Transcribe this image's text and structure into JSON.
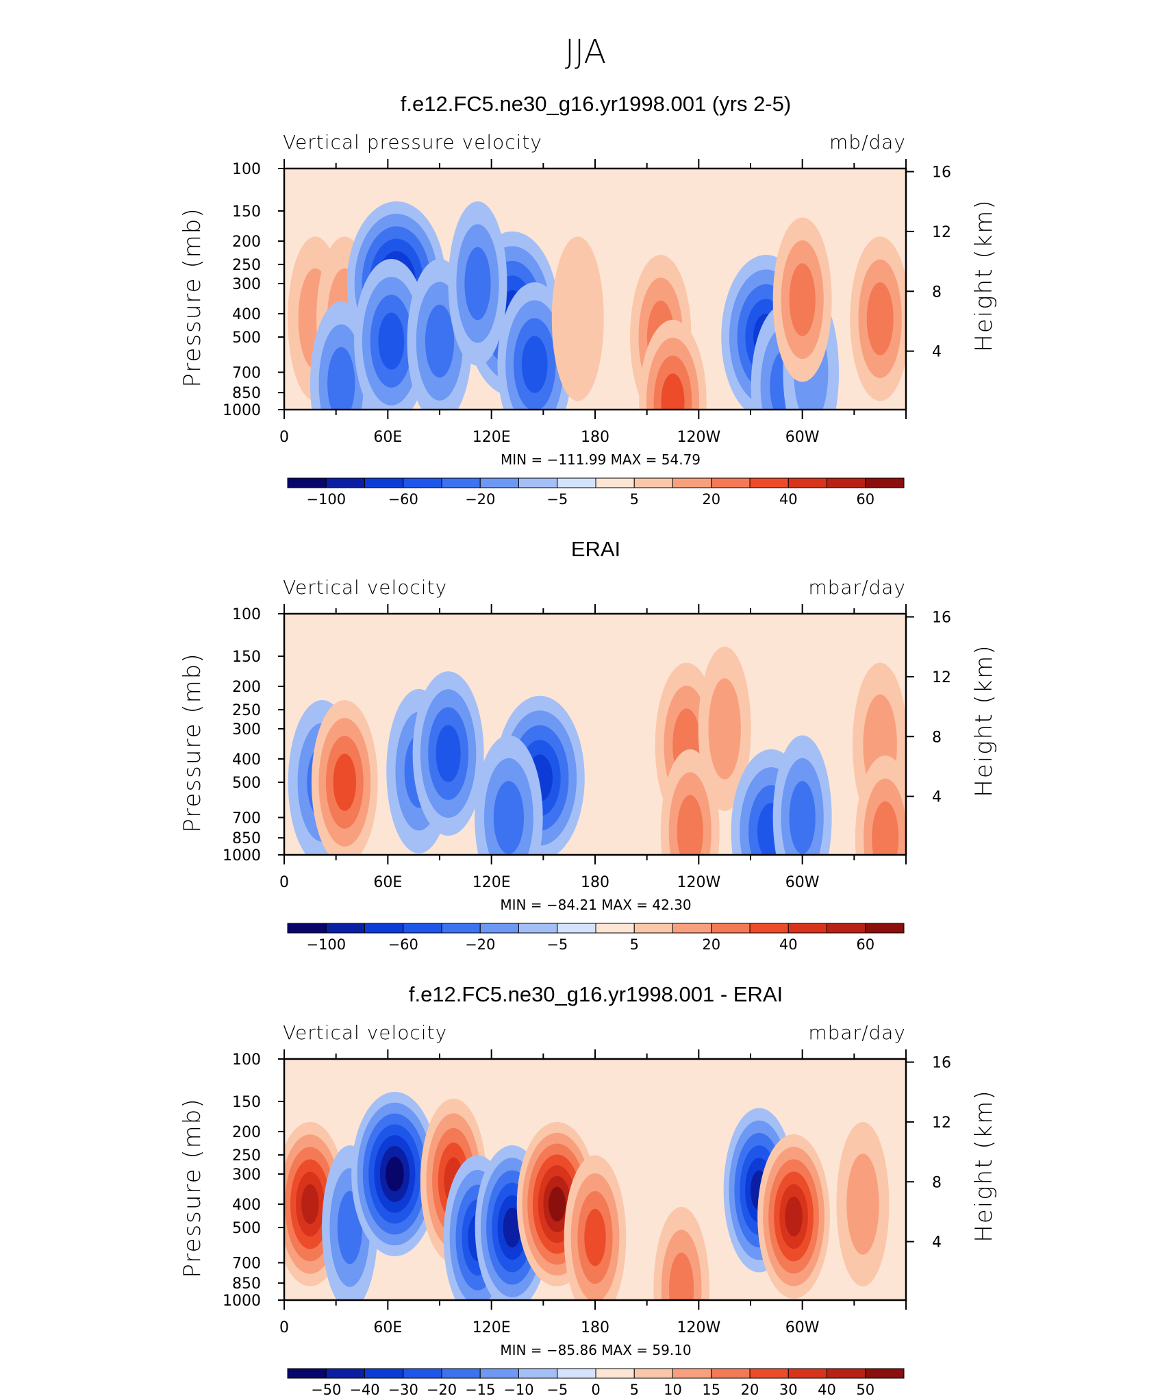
{
  "super_title": "JJA",
  "panels": [
    {
      "title": "f.e12.FC5.ne30_g16.yr1998.001 (yrs 2-5)",
      "left_label": "Vertical pressure velocity",
      "right_label": "mb/day",
      "min_max": "MIN = −111.99   MAX =  54.79"
    },
    {
      "title": "ERAI",
      "left_label": "Vertical velocity",
      "right_label": "mbar/day",
      "min_max": "MIN = −84.21   MAX =  42.30"
    },
    {
      "title": "f.e12.FC5.ne30_g16.yr1998.001 - ERAI",
      "left_label": "Vertical velocity",
      "right_label": "mbar/day",
      "min_max": "MIN = −85.86   MAX =  59.10"
    }
  ],
  "axes": {
    "y_label": "Pressure (mb)",
    "y2_label": "Height (km)",
    "pressure_ticks": [
      "100",
      "150",
      "200",
      "250",
      "300",
      "400",
      "500",
      "700",
      "850",
      "1000"
    ],
    "height_ticks": [
      "16",
      "12",
      "8",
      "4"
    ],
    "x_ticks": [
      "0",
      "60E",
      "120E",
      "180",
      "120W",
      "60W"
    ]
  },
  "colorbars": [
    {
      "labels": [
        "−100",
        "−60",
        "−20",
        "−5",
        "5",
        "20",
        "40",
        "60"
      ],
      "colors": [
        "#08066b",
        "#0a1fa4",
        "#0d3bd6",
        "#1f56ea",
        "#3d73f0",
        "#6d98f3",
        "#a4bff6",
        "#d4e3fb",
        "#fde5d6",
        "#fbc7ab",
        "#f8a07e",
        "#f37a55",
        "#ec4c2a",
        "#d8331b",
        "#b82114",
        "#8a0f0d"
      ]
    },
    {
      "labels": [
        "−100",
        "−60",
        "−20",
        "−5",
        "5",
        "20",
        "40",
        "60"
      ],
      "colors": [
        "#08066b",
        "#0a1fa4",
        "#0d3bd6",
        "#1f56ea",
        "#3d73f0",
        "#6d98f3",
        "#a4bff6",
        "#d4e3fb",
        "#fde5d6",
        "#fbc7ab",
        "#f8a07e",
        "#f37a55",
        "#ec4c2a",
        "#d8331b",
        "#b82114",
        "#8a0f0d"
      ]
    },
    {
      "labels": [
        "−50",
        "−40",
        "−30",
        "−20",
        "−15",
        "−10",
        "−5",
        "0",
        "5",
        "10",
        "15",
        "20",
        "30",
        "40",
        "50"
      ],
      "colors": [
        "#08066b",
        "#0a1fa4",
        "#0d3bd6",
        "#1f56ea",
        "#3d73f0",
        "#6d98f3",
        "#a4bff6",
        "#d4e3fb",
        "#fde5d6",
        "#fbc7ab",
        "#f8a07e",
        "#f37a55",
        "#ec4c2a",
        "#d8331b",
        "#b82114",
        "#8a0f0d"
      ]
    }
  ],
  "chart_data": [
    {
      "type": "heatmap",
      "title": "f.e12.FC5.ne30_g16.yr1998.001 (yrs 2-5)",
      "ylabel": "Pressure (mb)",
      "y2label": "Height (km)",
      "x_ticks": [
        "0",
        "60E",
        "120E",
        "180",
        "120W",
        "60W"
      ],
      "y_ticks": [
        100,
        150,
        200,
        250,
        300,
        400,
        500,
        700,
        850,
        1000
      ],
      "y_log": true,
      "units": "mb/day",
      "xlim": [
        0,
        360
      ],
      "ylim": [
        1000,
        100
      ],
      "levels": [
        -100,
        -80,
        -60,
        -40,
        -20,
        -10,
        -5,
        0,
        5,
        10,
        20,
        30,
        40,
        50,
        60
      ],
      "min": -111.99,
      "max": 54.79,
      "blobs": [
        {
          "lon": 18,
          "p": 420,
          "value": 14
        },
        {
          "lon": 35,
          "p": 420,
          "value": 16
        },
        {
          "lon": 33,
          "p": 780,
          "value": -25
        },
        {
          "lon": 65,
          "p": 300,
          "value": -85
        },
        {
          "lon": 62,
          "p": 520,
          "value": -45
        },
        {
          "lon": 90,
          "p": 520,
          "value": -30
        },
        {
          "lon": 132,
          "p": 400,
          "value": -75
        },
        {
          "lon": 145,
          "p": 650,
          "value": -45
        },
        {
          "lon": 112,
          "p": 300,
          "value": -20
        },
        {
          "lon": 218,
          "p": 500,
          "value": 24
        },
        {
          "lon": 225,
          "p": 930,
          "value": 34
        },
        {
          "lon": 170,
          "p": 420,
          "value": 9
        },
        {
          "lon": 279,
          "p": 500,
          "value": -70
        },
        {
          "lon": 290,
          "p": 800,
          "value": -35
        },
        {
          "lon": 305,
          "p": 700,
          "value": -15
        },
        {
          "lon": 300,
          "p": 350,
          "value": 20
        },
        {
          "lon": 345,
          "p": 420,
          "value": 22
        }
      ]
    },
    {
      "type": "heatmap",
      "title": "ERAI",
      "ylabel": "Pressure (mb)",
      "y2label": "Height (km)",
      "x_ticks": [
        "0",
        "60E",
        "120E",
        "180",
        "120W",
        "60W"
      ],
      "y_ticks": [
        100,
        150,
        200,
        250,
        300,
        400,
        500,
        700,
        850,
        1000
      ],
      "y_log": true,
      "units": "mbar/day",
      "xlim": [
        0,
        360
      ],
      "ylim": [
        1000,
        100
      ],
      "levels": [
        -100,
        -80,
        -60,
        -40,
        -20,
        -10,
        -5,
        0,
        5,
        10,
        20,
        30,
        40,
        50,
        60
      ],
      "min": -84.21,
      "max": 42.3,
      "blobs": [
        {
          "lon": 22,
          "p": 500,
          "value": -35
        },
        {
          "lon": 35,
          "p": 500,
          "value": 32
        },
        {
          "lon": 78,
          "p": 450,
          "value": -30
        },
        {
          "lon": 95,
          "p": 380,
          "value": -40
        },
        {
          "lon": 148,
          "p": 480,
          "value": -70
        },
        {
          "lon": 130,
          "p": 700,
          "value": -35
        },
        {
          "lon": 233,
          "p": 350,
          "value": 27
        },
        {
          "lon": 235,
          "p": 800,
          "value": 20
        },
        {
          "lon": 255,
          "p": 300,
          "value": 10
        },
        {
          "lon": 282,
          "p": 800,
          "value": -55
        },
        {
          "lon": 300,
          "p": 700,
          "value": -20
        },
        {
          "lon": 345,
          "p": 350,
          "value": 14
        },
        {
          "lon": 348,
          "p": 850,
          "value": 22
        }
      ]
    },
    {
      "type": "heatmap",
      "title": "f.e12.FC5.ne30_g16.yr1998.001 - ERAI",
      "ylabel": "Pressure (mb)",
      "y2label": "Height (km)",
      "x_ticks": [
        "0",
        "60E",
        "120E",
        "180",
        "120W",
        "60W"
      ],
      "y_ticks": [
        100,
        150,
        200,
        250,
        300,
        400,
        500,
        700,
        850,
        1000
      ],
      "y_log": true,
      "units": "mbar/day",
      "xlim": [
        0,
        360
      ],
      "ylim": [
        1000,
        100
      ],
      "levels": [
        -50,
        -40,
        -30,
        -20,
        -15,
        -10,
        -5,
        0,
        5,
        10,
        15,
        20,
        30,
        40,
        50
      ],
      "min": -85.86,
      "max": 59.1,
      "blobs": [
        {
          "lon": 15,
          "p": 400,
          "value": 42
        },
        {
          "lon": 38,
          "p": 500,
          "value": -15
        },
        {
          "lon": 64,
          "p": 300,
          "value": -65
        },
        {
          "lon": 98,
          "p": 320,
          "value": 32
        },
        {
          "lon": 112,
          "p": 550,
          "value": -35
        },
        {
          "lon": 132,
          "p": 500,
          "value": -45
        },
        {
          "lon": 158,
          "p": 400,
          "value": 55
        },
        {
          "lon": 180,
          "p": 550,
          "value": 25
        },
        {
          "lon": 230,
          "p": 900,
          "value": 15
        },
        {
          "lon": 275,
          "p": 350,
          "value": -40
        },
        {
          "lon": 295,
          "p": 450,
          "value": 42
        },
        {
          "lon": 335,
          "p": 400,
          "value": 10
        }
      ]
    }
  ]
}
